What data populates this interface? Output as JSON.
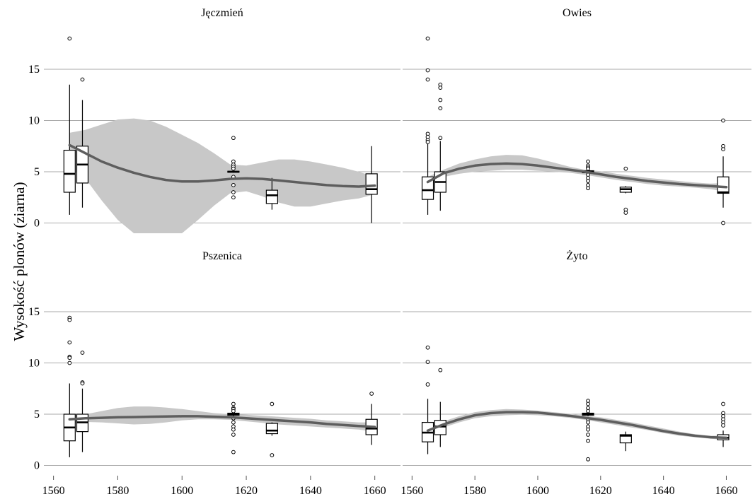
{
  "chart_data": {
    "type": "boxplot",
    "ylabel": "Wysokość plonów (ziarna)",
    "xlim": [
      1557,
      1668
    ],
    "ylim": [
      -1,
      19
    ],
    "x_ticks": [
      1560,
      1580,
      1600,
      1620,
      1640,
      1660
    ],
    "y_ticks": [
      0,
      5,
      10,
      15
    ],
    "grid": "horizontal",
    "colors": {
      "smooth_line": "#5e5e5e",
      "ribbon": "#c8c8c8",
      "grid": "#aaaaaa",
      "box_fill": "#ffffff"
    },
    "panels": [
      {
        "title": "Jęczmień",
        "boxes": [
          {
            "x": 1565,
            "min": 0.8,
            "q1": 3.0,
            "median": 4.8,
            "q3": 7.1,
            "max": 13.5,
            "outliers": [
              18.0
            ]
          },
          {
            "x": 1569,
            "min": 1.5,
            "q1": 3.9,
            "median": 5.7,
            "q3": 7.5,
            "max": 12.0,
            "outliers": [
              14.0
            ]
          },
          {
            "x": 1616,
            "min": 4.9,
            "q1": 4.95,
            "median": 5.0,
            "q3": 5.05,
            "max": 5.1,
            "outliers": [
              8.3,
              6.0,
              5.7,
              5.5,
              5.3,
              4.5,
              3.7,
              3.0,
              2.5
            ]
          },
          {
            "x": 1628,
            "min": 1.3,
            "q1": 1.9,
            "median": 2.7,
            "q3": 3.2,
            "max": 4.4,
            "outliers": []
          },
          {
            "x": 1659,
            "min": 0.0,
            "q1": 2.8,
            "median": 3.3,
            "q3": 4.8,
            "max": 7.5,
            "outliers": []
          }
        ],
        "smooth": {
          "x": [
            1565,
            1570,
            1575,
            1580,
            1585,
            1590,
            1595,
            1600,
            1605,
            1610,
            1615,
            1620,
            1625,
            1630,
            1635,
            1640,
            1645,
            1650,
            1655,
            1660
          ],
          "y": [
            7.6,
            6.8,
            6.0,
            5.4,
            4.9,
            4.5,
            4.2,
            4.05,
            4.05,
            4.15,
            4.3,
            4.35,
            4.3,
            4.15,
            4.0,
            3.85,
            3.7,
            3.6,
            3.55,
            3.65
          ],
          "lower": [
            5.6,
            4.3,
            2.2,
            0.3,
            -1.0,
            -1.0,
            -1.0,
            -1.0,
            0.3,
            1.7,
            2.9,
            3.1,
            2.6,
            2.0,
            1.6,
            1.6,
            1.9,
            2.2,
            2.4,
            2.8
          ],
          "upper": [
            8.8,
            9.1,
            9.6,
            10.1,
            10.2,
            10.0,
            9.4,
            8.6,
            7.8,
            6.8,
            5.7,
            5.6,
            5.9,
            6.2,
            6.2,
            6.0,
            5.7,
            5.4,
            5.0,
            4.5
          ]
        }
      },
      {
        "title": "Owies",
        "boxes": [
          {
            "x": 1565,
            "min": 0.8,
            "q1": 2.3,
            "median": 3.2,
            "q3": 4.5,
            "max": 7.8,
            "outliers": [
              18.0,
              14.9,
              14.0,
              8.7,
              8.4,
              8.1,
              7.9
            ]
          },
          {
            "x": 1569,
            "min": 1.2,
            "q1": 3.0,
            "median": 4.0,
            "q3": 5.0,
            "max": 8.0,
            "outliers": [
              13.5,
              13.2,
              12.0,
              11.2,
              8.3
            ]
          },
          {
            "x": 1616,
            "min": 4.8,
            "q1": 4.9,
            "median": 5.0,
            "q3": 5.1,
            "max": 5.2,
            "outliers": [
              6.0,
              5.6,
              5.4,
              5.3,
              4.7,
              4.4,
              4.1,
              3.7,
              3.4
            ]
          },
          {
            "x": 1628,
            "min": 2.9,
            "q1": 3.0,
            "median": 3.3,
            "q3": 3.5,
            "max": 3.6,
            "outliers": [
              5.3,
              1.3,
              1.0
            ]
          },
          {
            "x": 1659,
            "min": 1.5,
            "q1": 2.9,
            "median": 3.0,
            "q3": 4.5,
            "max": 6.5,
            "outliers": [
              10.0,
              7.5,
              7.2,
              0.0
            ]
          }
        ],
        "smooth": {
          "x": [
            1565,
            1570,
            1575,
            1580,
            1585,
            1590,
            1595,
            1600,
            1605,
            1610,
            1615,
            1620,
            1625,
            1630,
            1635,
            1640,
            1645,
            1650,
            1655,
            1660
          ],
          "y": [
            4.0,
            4.85,
            5.3,
            5.6,
            5.75,
            5.8,
            5.75,
            5.6,
            5.4,
            5.2,
            5.0,
            4.75,
            4.5,
            4.3,
            4.1,
            3.95,
            3.8,
            3.7,
            3.6,
            3.5
          ],
          "lower": [
            3.5,
            4.5,
            4.8,
            5.0,
            5.1,
            5.2,
            5.2,
            5.1,
            5.0,
            4.9,
            4.7,
            4.45,
            4.2,
            4.0,
            3.8,
            3.65,
            3.55,
            3.45,
            3.3,
            3.05
          ],
          "upper": [
            4.5,
            5.2,
            5.8,
            6.2,
            6.5,
            6.65,
            6.6,
            6.3,
            5.9,
            5.5,
            5.2,
            5.05,
            4.8,
            4.6,
            4.4,
            4.25,
            4.1,
            3.95,
            3.85,
            3.9
          ]
        }
      },
      {
        "title": "Pszenica",
        "boxes": [
          {
            "x": 1565,
            "min": 0.8,
            "q1": 2.4,
            "median": 3.7,
            "q3": 5.0,
            "max": 8.0,
            "outliers": [
              14.4,
              14.2,
              12.0,
              10.6,
              10.5,
              10.0
            ]
          },
          {
            "x": 1569,
            "min": 1.3,
            "q1": 3.3,
            "median": 4.2,
            "q3": 5.0,
            "max": 7.5,
            "outliers": [
              11.0,
              8.1,
              8.0
            ]
          },
          {
            "x": 1616,
            "min": 4.8,
            "q1": 4.9,
            "median": 5.0,
            "q3": 5.1,
            "max": 5.2,
            "outliers": [
              6.0,
              5.6,
              5.5,
              5.3,
              4.6,
              4.2,
              3.8,
              3.5,
              3.0,
              1.3
            ]
          },
          {
            "x": 1628,
            "min": 2.9,
            "q1": 3.1,
            "median": 3.4,
            "q3": 4.1,
            "max": 4.2,
            "outliers": [
              6.0,
              1.0
            ]
          },
          {
            "x": 1659,
            "min": 2.0,
            "q1": 3.0,
            "median": 3.6,
            "q3": 4.5,
            "max": 6.0,
            "outliers": [
              7.0
            ]
          }
        ],
        "smooth": {
          "x": [
            1565,
            1570,
            1575,
            1580,
            1585,
            1590,
            1595,
            1600,
            1605,
            1610,
            1615,
            1620,
            1625,
            1630,
            1635,
            1640,
            1645,
            1650,
            1655,
            1660
          ],
          "y": [
            4.5,
            4.6,
            4.65,
            4.7,
            4.72,
            4.75,
            4.78,
            4.8,
            4.8,
            4.75,
            4.7,
            4.6,
            4.5,
            4.4,
            4.3,
            4.2,
            4.05,
            3.95,
            3.85,
            3.75
          ],
          "lower": [
            4.0,
            4.25,
            4.2,
            4.1,
            4.0,
            4.05,
            4.2,
            4.4,
            4.5,
            4.5,
            4.45,
            4.3,
            4.15,
            4.0,
            3.9,
            3.8,
            3.7,
            3.6,
            3.5,
            3.3
          ],
          "upper": [
            5.0,
            5.0,
            5.3,
            5.6,
            5.75,
            5.75,
            5.65,
            5.5,
            5.3,
            5.1,
            5.0,
            4.95,
            4.85,
            4.75,
            4.65,
            4.55,
            4.4,
            4.3,
            4.2,
            4.2
          ]
        }
      },
      {
        "title": "Żyto",
        "boxes": [
          {
            "x": 1565,
            "min": 1.1,
            "q1": 2.3,
            "median": 3.2,
            "q3": 4.2,
            "max": 6.5,
            "outliers": [
              11.5,
              10.1,
              7.9
            ]
          },
          {
            "x": 1569,
            "min": 1.8,
            "q1": 3.0,
            "median": 3.8,
            "q3": 4.4,
            "max": 6.2,
            "outliers": [
              9.3
            ]
          },
          {
            "x": 1616,
            "min": 4.8,
            "q1": 4.9,
            "median": 5.0,
            "q3": 5.1,
            "max": 5.2,
            "outliers": [
              6.3,
              6.0,
              5.6,
              5.3,
              4.5,
              4.2,
              3.8,
              3.5,
              3.0,
              2.4,
              0.6
            ]
          },
          {
            "x": 1628,
            "min": 1.4,
            "q1": 2.2,
            "median": 2.9,
            "q3": 3.0,
            "max": 3.3,
            "outliers": []
          },
          {
            "x": 1659,
            "min": 1.8,
            "q1": 2.5,
            "median": 2.7,
            "q3": 3.0,
            "max": 3.4,
            "outliers": [
              6.0,
              5.1,
              4.8,
              4.5,
              4.2,
              3.9
            ]
          }
        ],
        "smooth": {
          "x": [
            1565,
            1570,
            1575,
            1580,
            1585,
            1590,
            1595,
            1600,
            1605,
            1610,
            1615,
            1620,
            1625,
            1630,
            1635,
            1640,
            1645,
            1650,
            1655,
            1660
          ],
          "y": [
            3.4,
            4.0,
            4.5,
            4.9,
            5.1,
            5.2,
            5.2,
            5.15,
            5.0,
            4.85,
            4.65,
            4.45,
            4.2,
            3.95,
            3.65,
            3.35,
            3.1,
            2.9,
            2.75,
            2.7
          ],
          "lower": [
            2.9,
            3.7,
            4.2,
            4.6,
            4.8,
            4.9,
            4.95,
            4.9,
            4.8,
            4.65,
            4.45,
            4.2,
            3.95,
            3.7,
            3.45,
            3.15,
            2.9,
            2.75,
            2.6,
            2.5
          ],
          "upper": [
            3.9,
            4.3,
            4.8,
            5.2,
            5.4,
            5.5,
            5.45,
            5.35,
            5.2,
            5.05,
            4.85,
            4.7,
            4.45,
            4.2,
            3.9,
            3.6,
            3.3,
            3.05,
            2.9,
            2.9
          ]
        }
      }
    ]
  }
}
